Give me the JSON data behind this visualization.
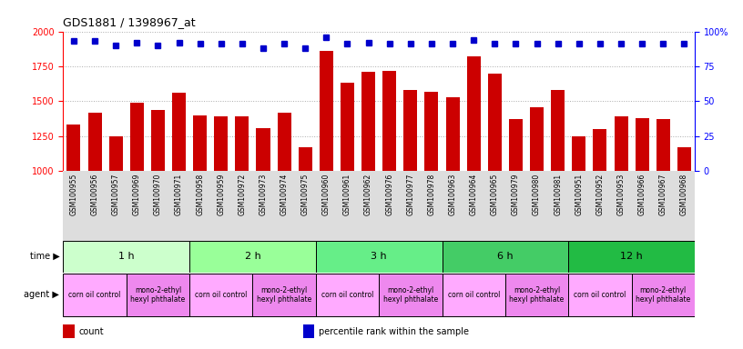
{
  "title": "GDS1881 / 1398967_at",
  "samples": [
    "GSM100955",
    "GSM100956",
    "GSM100957",
    "GSM100969",
    "GSM100970",
    "GSM100971",
    "GSM100958",
    "GSM100959",
    "GSM100972",
    "GSM100973",
    "GSM100974",
    "GSM100975",
    "GSM100960",
    "GSM100961",
    "GSM100962",
    "GSM100976",
    "GSM100977",
    "GSM100978",
    "GSM100963",
    "GSM100964",
    "GSM100965",
    "GSM100979",
    "GSM100980",
    "GSM100981",
    "GSM100951",
    "GSM100952",
    "GSM100953",
    "GSM100966",
    "GSM100967",
    "GSM100968"
  ],
  "counts": [
    1330,
    1420,
    1250,
    1490,
    1440,
    1560,
    1400,
    1390,
    1390,
    1310,
    1420,
    1170,
    1860,
    1630,
    1710,
    1720,
    1580,
    1570,
    1530,
    1820,
    1700,
    1370,
    1460,
    1580,
    1250,
    1300,
    1390,
    1380,
    1370,
    1170
  ],
  "percentiles": [
    93,
    93,
    90,
    92,
    90,
    92,
    91,
    91,
    91,
    88,
    91,
    88,
    96,
    91,
    92,
    91,
    91,
    91,
    91,
    94,
    91,
    91,
    91,
    91,
    91,
    91,
    91,
    91,
    91,
    91
  ],
  "bar_color": "#cc0000",
  "dot_color": "#0000cc",
  "ylim_left": [
    1000,
    2000
  ],
  "ylim_right": [
    0,
    100
  ],
  "yticks_left": [
    1000,
    1250,
    1500,
    1750,
    2000
  ],
  "yticks_right": [
    0,
    25,
    50,
    75,
    100
  ],
  "time_groups": [
    {
      "label": "1 h",
      "start": 0,
      "end": 6,
      "color": "#ccffcc"
    },
    {
      "label": "2 h",
      "start": 6,
      "end": 12,
      "color": "#99ff99"
    },
    {
      "label": "3 h",
      "start": 12,
      "end": 18,
      "color": "#66ee88"
    },
    {
      "label": "6 h",
      "start": 18,
      "end": 24,
      "color": "#44cc66"
    },
    {
      "label": "12 h",
      "start": 24,
      "end": 30,
      "color": "#22bb44"
    }
  ],
  "agent_groups": [
    {
      "label": "corn oil control",
      "start": 0,
      "end": 3,
      "color": "#ffaaff"
    },
    {
      "label": "mono-2-ethyl\nhexyl phthalate",
      "start": 3,
      "end": 6,
      "color": "#ee88ee"
    },
    {
      "label": "corn oil control",
      "start": 6,
      "end": 9,
      "color": "#ffaaff"
    },
    {
      "label": "mono-2-ethyl\nhexyl phthalate",
      "start": 9,
      "end": 12,
      "color": "#ee88ee"
    },
    {
      "label": "corn oil control",
      "start": 12,
      "end": 15,
      "color": "#ffaaff"
    },
    {
      "label": "mono-2-ethyl\nhexyl phthalate",
      "start": 15,
      "end": 18,
      "color": "#ee88ee"
    },
    {
      "label": "corn oil control",
      "start": 18,
      "end": 21,
      "color": "#ffaaff"
    },
    {
      "label": "mono-2-ethyl\nhexyl phthalate",
      "start": 21,
      "end": 24,
      "color": "#ee88ee"
    },
    {
      "label": "corn oil control",
      "start": 24,
      "end": 27,
      "color": "#ffaaff"
    },
    {
      "label": "mono-2-ethyl\nhexyl phthalate",
      "start": 27,
      "end": 30,
      "color": "#ee88ee"
    }
  ],
  "legend_items": [
    {
      "label": "count",
      "color": "#cc0000"
    },
    {
      "label": "percentile rank within the sample",
      "color": "#0000cc"
    }
  ],
  "background_color": "#ffffff",
  "grid_color": "#aaaaaa",
  "xtick_bg": "#dddddd"
}
